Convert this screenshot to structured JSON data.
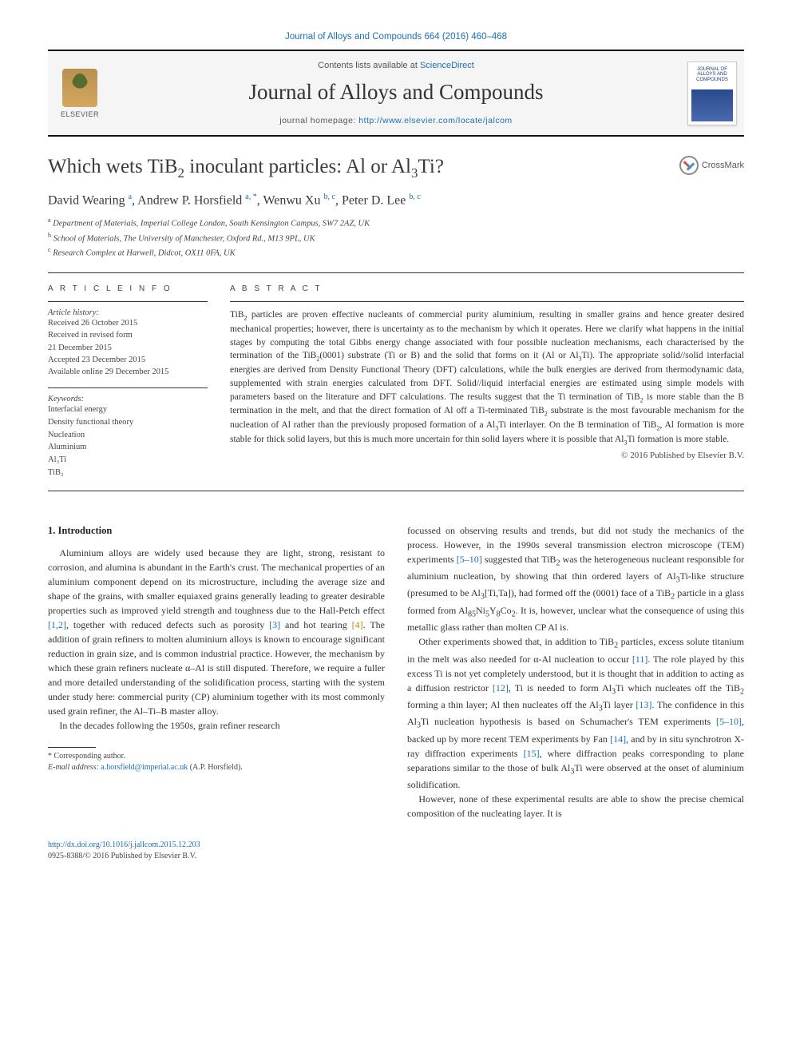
{
  "citation": "Journal of Alloys and Compounds 664 (2016) 460–468",
  "banner": {
    "contents_prefix": "Contents lists available at ",
    "contents_link": "ScienceDirect",
    "journal_title": "Journal of Alloys and Compounds",
    "homepage_prefix": "journal homepage: ",
    "homepage_url": "http://www.elsevier.com/locate/jalcom",
    "publisher": "ELSEVIER",
    "cover_text": "JOURNAL OF\nALLOYS AND\nCOMPOUNDS"
  },
  "article": {
    "title_html": "Which wets TiB<sub>2</sub> inoculant particles: Al or Al<sub>3</sub>Ti?",
    "crossmark": "CrossMark",
    "authors_html": "David Wearing <sup>a</sup>, Andrew P. Horsfield <sup>a, *</sup>, Wenwu Xu <sup>b, c</sup>, Peter D. Lee <sup>b, c</sup>",
    "affiliations": [
      {
        "sup": "a",
        "text": "Department of Materials, Imperial College London, South Kensington Campus, SW7 2AZ, UK"
      },
      {
        "sup": "b",
        "text": "School of Materials, The University of Manchester, Oxford Rd., M13 9PL, UK"
      },
      {
        "sup": "c",
        "text": "Research Complex at Harwell, Didcot, OX11 0FA, UK"
      }
    ]
  },
  "meta": {
    "info_heading": "A R T I C L E  I N F O",
    "history_label": "Article history:",
    "history": "Received 26 October 2015\nReceived in revised form\n21 December 2015\nAccepted 23 December 2015\nAvailable online 29 December 2015",
    "keywords_label": "Keywords:",
    "keywords": "Interfacial energy\nDensity functional theory\nNucleation\nAluminium\nAl₃Ti\nTiB₂"
  },
  "abstract": {
    "heading": "A B S T R A C T",
    "body_html": "TiB<sub>2</sub> particles are proven effective nucleants of commercial purity aluminium, resulting in smaller grains and hence greater desired mechanical properties; however, there is uncertainty as to the mechanism by which it operates. Here we clarify what happens in the initial stages by computing the total Gibbs energy change associated with four possible nucleation mechanisms, each characterised by the termination of the TiB<sub>2</sub>(0001) substrate (Ti or B) and the solid that forms on it (Al or Al<sub>3</sub>Ti). The appropriate solid//solid interfacial energies are derived from Density Functional Theory (DFT) calculations, while the bulk energies are derived from thermodynamic data, supplemented with strain energies calculated from DFT. Solid//liquid interfacial energies are estimated using simple models with parameters based on the literature and DFT calculations. The results suggest that the Ti termination of TiB<sub>2</sub> is more stable than the B termination in the melt, and that the direct formation of Al off a Ti-terminated TiB<sub>2</sub> substrate is the most favourable mechanism for the nucleation of Al rather than the previously proposed formation of a Al<sub>3</sub>Ti interlayer. On the B termination of TiB<sub>2</sub>, Al formation is more stable for thick solid layers, but this is much more uncertain for thin solid layers where it is possible that Al<sub>3</sub>Ti formation is more stable.",
    "copyright": "© 2016 Published by Elsevier B.V."
  },
  "body": {
    "section1_heading": "1. Introduction",
    "p1_html": "Aluminium alloys are widely used because they are light, strong, resistant to corrosion, and alumina is abundant in the Earth's crust. The mechanical properties of an aluminium component depend on its microstructure, including the average size and shape of the grains, with smaller equiaxed grains generally leading to greater desirable properties such as improved yield strength and toughness due to the Hall-Petch effect <span class=\"ref\">[1,2]</span>, together with reduced defects such as porosity <span class=\"ref\">[3]</span> and hot tearing <span class=\"refy\">[4]</span>. The addition of grain refiners to molten aluminium alloys is known to encourage significant reduction in grain size, and is common industrial practice. However, the mechanism by which these grain refiners nucleate α–Al is still disputed. Therefore, we require a fuller and more detailed understanding of the solidification process, starting with the system under study here: commercial purity (CP) aluminium together with its most commonly used grain refiner, the Al–Ti–B master alloy.",
    "p2_html": "In the decades following the 1950s, grain refiner research",
    "p3_html": "focussed on observing results and trends, but did not study the mechanics of the process. However, in the 1990s several transmission electron microscope (TEM) experiments <span class=\"ref\">[5–10]</span> suggested that TiB<sub>2</sub> was the heterogeneous nucleant responsible for aluminium nucleation, by showing that thin ordered layers of Al<sub>3</sub>Ti-like structure (presumed to be Al<sub>3</sub>[Ti,Ta]), had formed off the (0001) face of a TiB<sub>2</sub> particle in a glass formed from Al<sub>85</sub>Ni<sub>5</sub>Y<sub>8</sub>Co<sub>2</sub>. It is, however, unclear what the consequence of using this metallic glass rather than molten CP Al is.",
    "p4_html": "Other experiments showed that, in addition to TiB<sub>2</sub> particles, excess solute titanium in the melt was also needed for α-Al nucleation to occur <span class=\"ref\">[11]</span>. The role played by this excess Ti is not yet completely understood, but it is thought that in addition to acting as a diffusion restrictor <span class=\"ref\">[12]</span>, Ti is needed to form Al<sub>3</sub>Ti which nucleates off the TiB<sub>2</sub> forming a thin layer; Al then nucleates off the Al<sub>3</sub>Ti layer <span class=\"ref\">[13]</span>. The confidence in this Al<sub>3</sub>Ti nucleation hypothesis is based on Schumacher's TEM experiments <span class=\"ref\">[5–10]</span>, backed up by more recent TEM experiments by Fan <span class=\"ref\">[14]</span>, and by in situ synchrotron X-ray diffraction experiments <span class=\"ref\">[15]</span>, where diffraction peaks corresponding to plane separations similar to the those of bulk Al<sub>3</sub>Ti were observed at the onset of aluminium solidification.",
    "p5_html": "However, none of these experimental results are able to show the precise chemical composition of the nucleating layer. It is"
  },
  "footnote": {
    "corr": "* Corresponding author.",
    "email_label": "E-mail address:",
    "email": "a.horsfield@imperial.ac.uk",
    "email_who": " (A.P. Horsfield)."
  },
  "footer": {
    "doi": "http://dx.doi.org/10.1016/j.jallcom.2015.12.203",
    "issn_line": "0925-8388/© 2016 Published by Elsevier B.V."
  },
  "colors": {
    "link": "#1a6fb5",
    "accent_yellow": "#b58900",
    "rule": "#333333",
    "text": "#333333"
  }
}
